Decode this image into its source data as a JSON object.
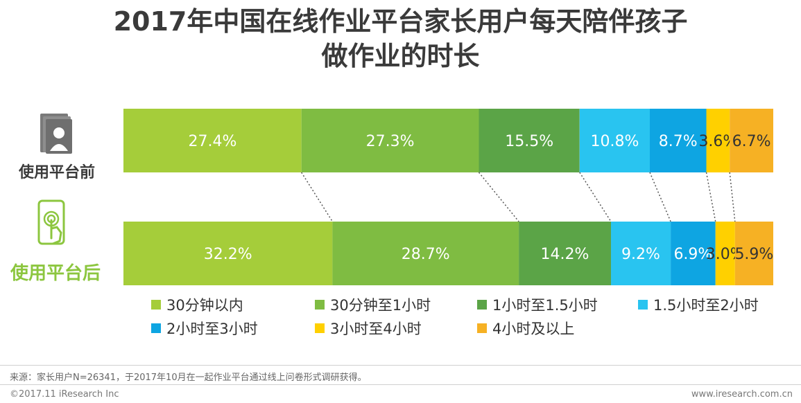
{
  "title": {
    "line1": "2017年中国在线作业平台家长用户每天陪伴孩子",
    "line2": "做作业的时长"
  },
  "rows": [
    {
      "label": "使用平台前",
      "label_color": "#3a3a3a",
      "icon": "books-parent-icon"
    },
    {
      "label": "使用平台后",
      "label_color": "#8cc63f",
      "icon": "phone-touch-icon"
    }
  ],
  "chart_data": {
    "type": "bar",
    "orientation": "horizontal",
    "stacked": true,
    "normalized": true,
    "categories": [
      "使用平台前",
      "使用平台后"
    ],
    "series": [
      {
        "name": "30分钟以内",
        "color": "#a5cd3a",
        "values": [
          27.4,
          32.2
        ],
        "labels": [
          "27.4%",
          "32.2%"
        ]
      },
      {
        "name": "30分钟至1小时",
        "color": "#7fbc42",
        "values": [
          27.3,
          28.7
        ],
        "labels": [
          "27.3%",
          "28.7%"
        ]
      },
      {
        "name": "1小时至1.5小时",
        "color": "#5ba447",
        "values": [
          15.5,
          14.2
        ],
        "labels": [
          "15.5%",
          "14.2%"
        ]
      },
      {
        "name": "1.5小时至2小时",
        "color": "#29c4f0",
        "values": [
          10.8,
          9.2
        ],
        "labels": [
          "10.8%",
          "9.2%"
        ]
      },
      {
        "name": "2小时至3小时",
        "color": "#0ea5e2",
        "values": [
          8.7,
          6.9
        ],
        "labels": [
          "8.7%",
          "6.9%"
        ]
      },
      {
        "name": "3小时至4小时",
        "color": "#ffd000",
        "values": [
          3.6,
          3.0
        ],
        "labels": [
          "3.6%",
          "3.0%"
        ]
      },
      {
        "name": "4小时及以上",
        "color": "#f6b124",
        "values": [
          6.7,
          5.9
        ],
        "labels": [
          "6.7%",
          "5.9%"
        ]
      }
    ],
    "legend_position": "bottom",
    "connector_lines": "dotted"
  },
  "footer": {
    "note": "来源：家长用户N=26341，于2017年10月在一起作业平台通过线上问卷形式调研获得。",
    "copyright": "©2017.11 iResearch Inc",
    "site": "www.iresearch.com.cn"
  }
}
